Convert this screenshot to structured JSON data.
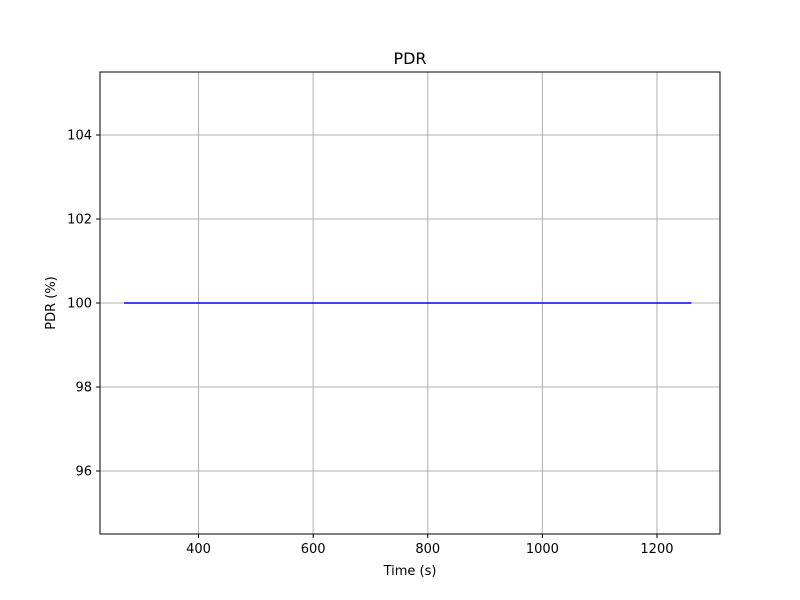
{
  "chart_data": {
    "type": "line",
    "title": "PDR",
    "xlabel": "Time (s)",
    "ylabel": "PDR (%)",
    "xlim": [
      228,
      1310
    ],
    "ylim": [
      94.5,
      105.5
    ],
    "xticks": [
      400,
      600,
      800,
      1000,
      1200
    ],
    "yticks": [
      96,
      98,
      100,
      102,
      104
    ],
    "grid": true,
    "series": [
      {
        "name": "PDR",
        "color": "#0000ff",
        "x": [
          270,
          1260
        ],
        "y": [
          100,
          100
        ]
      }
    ]
  }
}
